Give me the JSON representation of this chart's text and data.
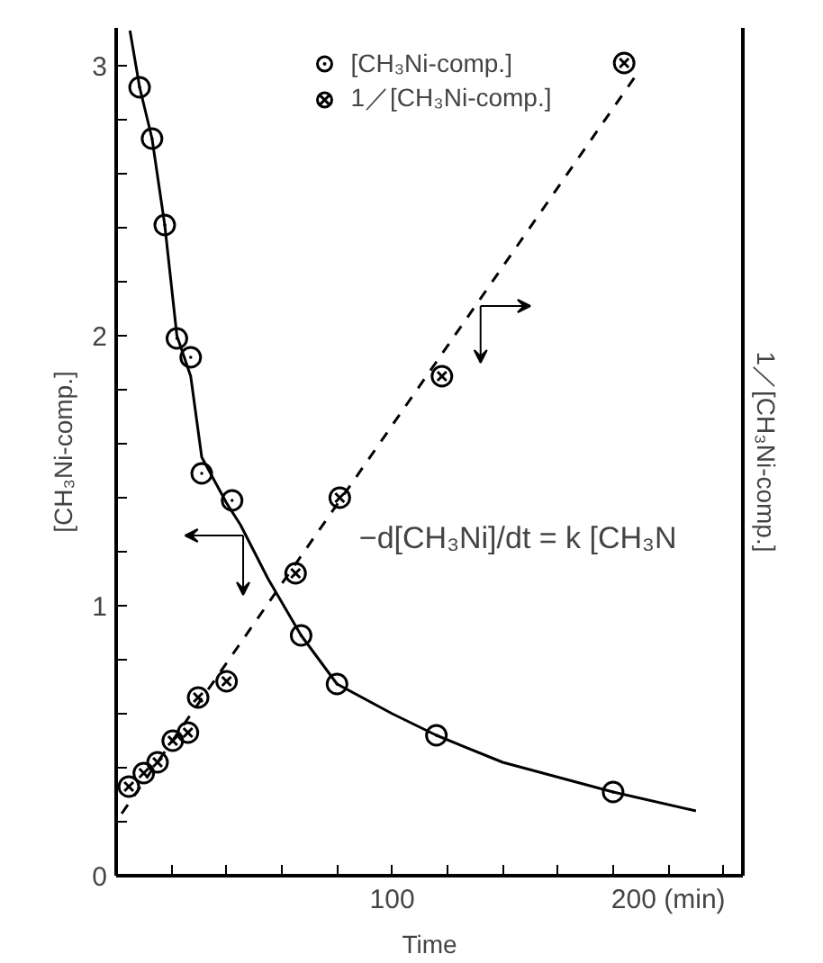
{
  "chart_data": {
    "type": "scatter",
    "xlabel": "Time",
    "ylabel": "[CH₃Ni-comp.]",
    "y2label": "1／[CH₃Ni-comp.]",
    "xlim": [
      0,
      227
    ],
    "ylim": [
      0,
      3.14
    ],
    "xticks": [
      {
        "value": 20,
        "label": null
      },
      {
        "value": 40,
        "label": null
      },
      {
        "value": 60,
        "label": null
      },
      {
        "value": 80,
        "label": null
      },
      100,
      {
        "value": 120,
        "label": null
      },
      {
        "value": 140,
        "label": null
      },
      {
        "value": 160,
        "label": null
      },
      {
        "value": 180,
        "label": null
      },
      {
        "value": 200,
        "label": "200 (min)"
      },
      {
        "value": 220,
        "label": null
      }
    ],
    "yticks": [
      0,
      {
        "value": 0.2,
        "label": null
      },
      {
        "value": 0.4,
        "label": null
      },
      {
        "value": 0.6,
        "label": null
      },
      {
        "value": 0.8,
        "label": null
      },
      1,
      {
        "value": 1.2,
        "label": null
      },
      {
        "value": 1.4,
        "label": null
      },
      {
        "value": 1.6,
        "label": null
      },
      {
        "value": 1.8,
        "label": null
      },
      2,
      {
        "value": 2.2,
        "label": null
      },
      {
        "value": 2.4,
        "label": null
      },
      {
        "value": 2.6,
        "label": null
      },
      {
        "value": 2.8,
        "label": null
      },
      3
    ],
    "grid": false,
    "legend": "top",
    "series": [
      {
        "name": "[CH₃Ni-comp.]",
        "marker": "circle",
        "color": "#000000",
        "x": [
          8.5,
          13,
          17.6,
          22,
          27,
          31,
          42,
          67,
          80,
          116,
          180
        ],
        "values": [
          2.92,
          2.73,
          2.41,
          1.99,
          1.92,
          1.49,
          1.39,
          0.89,
          0.71,
          0.52,
          0.31
        ]
      },
      {
        "name": "1／[CH₃Ni-comp.]",
        "color": "#000000",
        "x": [
          4.6,
          10,
          15,
          20.5,
          26,
          29.7,
          40,
          65,
          81,
          118,
          184
        ],
        "values": [
          0.33,
          0.38,
          0.42,
          0.5,
          0.53,
          0.66,
          0.72,
          1.12,
          1.4,
          1.85,
          3.01
        ]
      },
      {
        "type": "line",
        "line_style": "solid",
        "color": "#000000",
        "x": [
          5,
          8.5,
          13,
          17.6,
          22,
          27,
          31,
          40,
          45,
          55,
          67,
          80,
          100,
          116,
          140,
          180,
          210
        ],
        "values": [
          3.13,
          2.92,
          2.73,
          2.41,
          2.0,
          1.85,
          1.55,
          1.38,
          1.3,
          1.1,
          0.89,
          0.71,
          0.6,
          0.52,
          0.42,
          0.31,
          0.24
        ]
      },
      {
        "type": "line",
        "line_style": "dashed",
        "color": "#000000",
        "x": [
          2,
          188
        ],
        "values": [
          0.23,
          2.96
        ]
      }
    ],
    "annotations": [
      "−d[CH₃Ni]/dt = k [CH₃N"
    ]
  }
}
